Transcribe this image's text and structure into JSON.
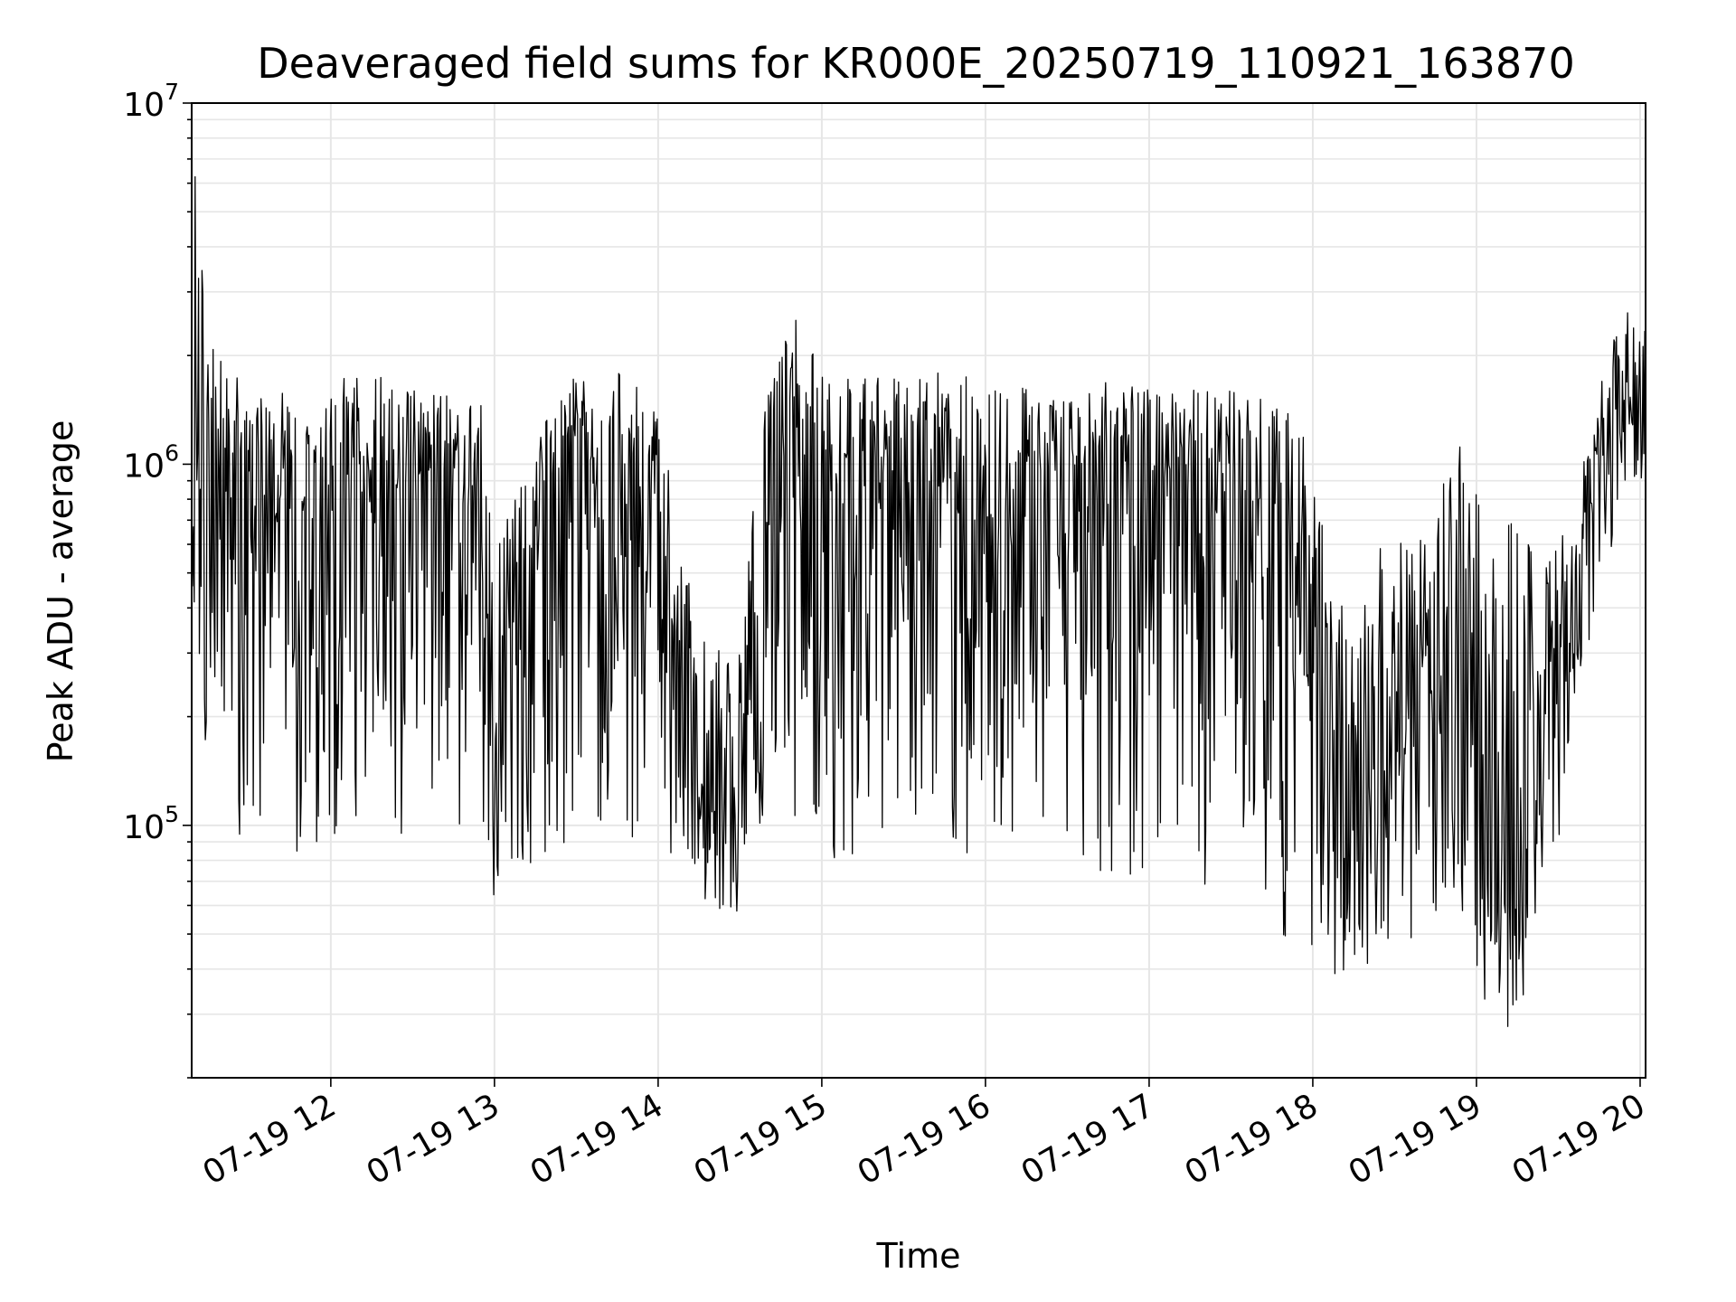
{
  "chart_data": {
    "type": "line",
    "title": "Deaveraged field sums for KR000E_20250719_110921_163870",
    "xlabel": "Time",
    "ylabel": "Peak ADU - average",
    "x_tick_labels": [
      "07-19 12",
      "07-19 13",
      "07-19 14",
      "07-19 15",
      "07-19 16",
      "07-19 17",
      "07-19 18",
      "07-19 19",
      "07-19 20"
    ],
    "x_tick_values": [
      "2025-07-19 12:00",
      "2025-07-19 13:00",
      "2025-07-19 14:00",
      "2025-07-19 15:00",
      "2025-07-19 16:00",
      "2025-07-19 17:00",
      "2025-07-19 18:00",
      "2025-07-19 19:00",
      "2025-07-19 20:00"
    ],
    "y_ticks": [
      {
        "base": "10",
        "exp": "5",
        "value": 100000
      },
      {
        "base": "10",
        "exp": "6",
        "value": 1000000
      },
      {
        "base": "10",
        "exp": "7",
        "value": 10000000
      }
    ],
    "yscale": "log",
    "xlim": [
      "2025-07-19 11:09",
      "2025-07-19 20:02"
    ],
    "ylim": [
      20000,
      10000000
    ],
    "grid": true,
    "line_color": "#000000",
    "series": [
      {
        "x": [
          "2025-07-19 11:09",
          "2025-07-19 11:15",
          "2025-07-19 11:30",
          "2025-07-19 11:45",
          "2025-07-19 12:00",
          "2025-07-19 12:15",
          "2025-07-19 12:30",
          "2025-07-19 12:45",
          "2025-07-19 12:55",
          "2025-07-19 13:00",
          "2025-07-19 13:10",
          "2025-07-19 13:20",
          "2025-07-19 13:30",
          "2025-07-19 13:45",
          "2025-07-19 14:00",
          "2025-07-19 14:10",
          "2025-07-19 14:20",
          "2025-07-19 14:30",
          "2025-07-19 14:40",
          "2025-07-19 14:50",
          "2025-07-19 15:00",
          "2025-07-19 15:20",
          "2025-07-19 15:40",
          "2025-07-19 16:00",
          "2025-07-19 16:20",
          "2025-07-19 16:40",
          "2025-07-19 17:00",
          "2025-07-19 17:20",
          "2025-07-19 17:40",
          "2025-07-19 17:55",
          "2025-07-19 18:05",
          "2025-07-19 18:15",
          "2025-07-19 18:25",
          "2025-07-19 18:35",
          "2025-07-19 18:45",
          "2025-07-19 18:55",
          "2025-07-19 19:05",
          "2025-07-19 19:15",
          "2025-07-19 19:25",
          "2025-07-19 19:35",
          "2025-07-19 19:45",
          "2025-07-19 19:55",
          "2025-07-19 20:02"
        ],
        "lo": [
          500000,
          80000,
          90000,
          80000,
          90000,
          90000,
          90000,
          90000,
          90000,
          55000,
          65000,
          60000,
          120000,
          90000,
          65000,
          70000,
          60000,
          55000,
          100000,
          100000,
          80000,
          75000,
          80000,
          75000,
          80000,
          70000,
          75000,
          60000,
          50000,
          45000,
          35000,
          40000,
          40000,
          45000,
          50000,
          50000,
          27000,
          28000,
          60000,
          140000,
          400000,
          900000,
          900000
        ],
        "hi": [
          8000000,
          2500000,
          1500000,
          1600000,
          1700000,
          1800000,
          1600000,
          1600000,
          1600000,
          650000,
          900000,
          1400000,
          1800000,
          1800000,
          1500000,
          500000,
          300000,
          350000,
          1800000,
          2600000,
          1800000,
          1800000,
          1800000,
          1800000,
          1700000,
          1700000,
          1650000,
          1600000,
          1600000,
          1500000,
          600000,
          300000,
          700000,
          750000,
          800000,
          1200000,
          750000,
          700000,
          550000,
          700000,
          1700000,
          2800000,
          2500000
        ],
        "level": [
          1000000,
          800000,
          900000,
          800000,
          850000,
          900000,
          800000,
          800000,
          800000,
          200000,
          400000,
          700000,
          900000,
          800000,
          600000,
          150000,
          120000,
          130000,
          600000,
          900000,
          900000,
          900000,
          900000,
          900000,
          850000,
          800000,
          800000,
          650000,
          550000,
          500000,
          200000,
          100000,
          150000,
          200000,
          250000,
          300000,
          60000,
          70000,
          150000,
          300000,
          1200000,
          1600000,
          1500000
        ]
      }
    ]
  }
}
